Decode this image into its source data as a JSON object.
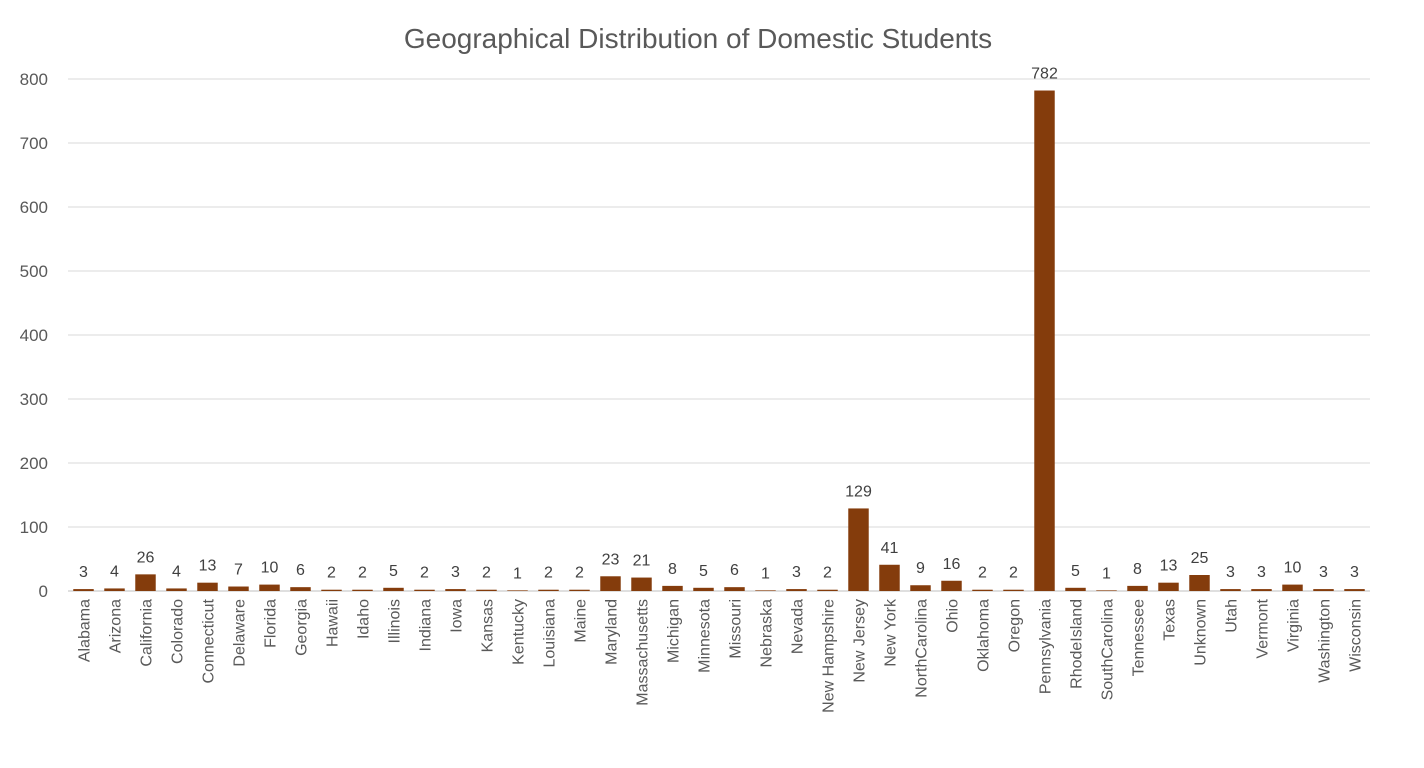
{
  "chart_data": {
    "type": "bar",
    "title": "Geographical Distribution of Domestic Students",
    "xlabel": "",
    "ylabel": "",
    "ylim": [
      0,
      800
    ],
    "yticks": [
      0,
      100,
      200,
      300,
      400,
      500,
      600,
      700,
      800
    ],
    "grid": true,
    "legend": "none",
    "bar_color": "#843C0C",
    "categories": [
      "Alabama",
      "Arizona",
      "California",
      "Colorado",
      "Connecticut",
      "Delaware",
      "Florida",
      "Georgia",
      "Hawaii",
      "Idaho",
      "Illinois",
      "Indiana",
      "Iowa",
      "Kansas",
      "Kentucky",
      "Louisiana",
      "Maine",
      "Maryland",
      "Massachusetts",
      "Michigan",
      "Minnesota",
      "Missouri",
      "Nebraska",
      "Nevada",
      "New Hampshire",
      "New Jersey",
      "New York",
      "NorthCarolina",
      "Ohio",
      "Oklahoma",
      "Oregon",
      "Pennsylvania",
      "RhodeIsland",
      "SouthCarolina",
      "Tennessee",
      "Texas",
      "Unknown",
      "Utah",
      "Vermont",
      "Virginia",
      "Washington",
      "Wisconsin"
    ],
    "values": [
      3,
      4,
      26,
      4,
      13,
      7,
      10,
      6,
      2,
      2,
      5,
      2,
      3,
      2,
      1,
      2,
      2,
      23,
      21,
      8,
      5,
      6,
      1,
      3,
      2,
      129,
      41,
      9,
      16,
      2,
      2,
      782,
      5,
      1,
      8,
      13,
      25,
      3,
      3,
      10,
      3,
      3
    ]
  }
}
